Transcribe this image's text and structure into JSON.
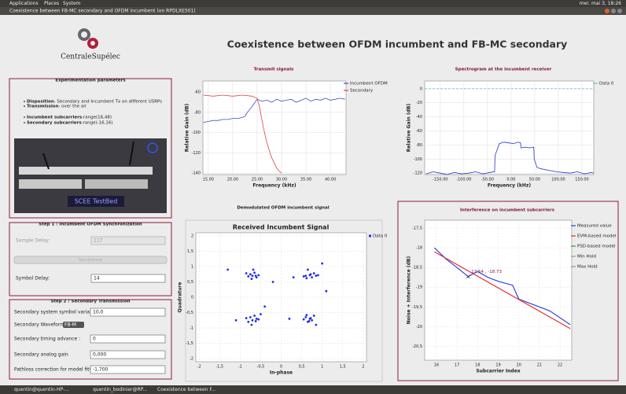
{
  "top_bar": {
    "menus": [
      "Applications",
      "Places",
      "System"
    ],
    "clock": "mer. mai 3, 18:26"
  },
  "window": {
    "title": "Coexistence between FB-MC secondary and OFDM incumbent (on RPDLXE501)"
  },
  "header": {
    "logo_text": "CentraleSupélec",
    "title": "Coexistence between OFDM incumbent and FB-MC secondary"
  },
  "params_panel": {
    "title": "Experimentation parameters",
    "items": [
      {
        "label": "Disposition",
        "text": " : Secondary and Incumbent Tx on different USRPs"
      },
      {
        "label": "Transmission",
        "text": " : over the air"
      },
      {
        "label": "Incumbent subcarriers",
        "text": " :range(16,48)"
      },
      {
        "label": "Secondary subcarriers",
        "text": " :range(-16,16)"
      }
    ],
    "photo_text": "SCEE TestBed"
  },
  "step1": {
    "title": "Step 1 : Incumbent OFDM Synchronization",
    "sample_delay_label": "Sample Delay:",
    "sample_delay": "117",
    "button": "Synchronize",
    "symbol_delay_label": "Symbol Delay:",
    "symbol_delay": "14"
  },
  "step2": {
    "title": "Step 2 : Secondary Transmission",
    "rows": [
      {
        "label": "Secondary system symbol variance (dB)",
        "value": "10,0"
      },
      {
        "label": "Secondary Waveform:",
        "value": "FB-M"
      },
      {
        "label": "Secondary timing advance :",
        "value": "0"
      },
      {
        "label": "Secondary analog gain",
        "value": "0,000"
      },
      {
        "label": "Pathloss correction for model fit(dB)",
        "value": "-1,700"
      }
    ]
  },
  "sections": {
    "demodulated": "Demodulated OFDM incumbent signal"
  },
  "taskbar": [
    "quentin@quentin-HP-...",
    "quentin_bodinier@RP...",
    "Coexistence between F..."
  ],
  "chart_data": [
    {
      "type": "line",
      "title": "Transmit signals",
      "x_label": "Frequency (kHz)",
      "y_label": "Relative Gain (dB)",
      "xlim": [
        13.9,
        43.2
      ],
      "ylim": [
        -141.5,
        -49
      ],
      "xticks": [
        {
          "value": 15,
          "label": "15.00"
        },
        {
          "value": 20,
          "label": "20.00"
        },
        {
          "value": 25,
          "label": "25.00"
        },
        {
          "value": 30,
          "label": "30.00"
        },
        {
          "value": 35,
          "label": "35.00"
        },
        {
          "value": 40,
          "label": "40.00"
        }
      ],
      "yticks": [
        -60,
        -80,
        -100,
        -120,
        -140
      ],
      "grid": true,
      "series": [
        {
          "name": "Incumbent OFDM",
          "color": "#3b4fc4",
          "x": [
            14,
            15,
            16,
            17,
            18,
            19,
            20,
            21,
            22,
            22.5,
            23,
            24,
            25,
            26,
            27,
            28,
            29,
            30,
            31,
            32,
            33,
            34,
            35,
            36,
            37,
            38,
            39,
            40,
            41,
            42,
            43
          ],
          "values": [
            -90,
            -89,
            -88,
            -88,
            -87,
            -87,
            -86,
            -86,
            -85,
            -84,
            -80,
            -74,
            -67,
            -69,
            -68,
            -70,
            -67,
            -69,
            -68,
            -67,
            -70,
            -68,
            -66,
            -69,
            -67,
            -68,
            -66,
            -68,
            -67,
            -66,
            -67
          ]
        },
        {
          "name": "Secondary",
          "color": "#e0404a",
          "x": [
            14,
            16,
            18,
            20,
            22,
            24,
            25,
            25.5,
            26,
            26.5,
            27,
            27.5,
            28,
            28.5,
            29,
            29.5,
            30
          ],
          "values": [
            -63,
            -64,
            -63,
            -64,
            -63,
            -64,
            -66,
            -75,
            -88,
            -100,
            -110,
            -118,
            -125,
            -130,
            -135,
            -138,
            -140
          ]
        }
      ]
    },
    {
      "type": "line",
      "title": "Spectrogram at the incumbent receiver",
      "x_label": "Frequency (kHz)",
      "y_label": "Relative Gain (dB)",
      "xlim": [
        -183,
        175
      ],
      "ylim": [
        -122,
        11
      ],
      "xticks": [
        {
          "value": -150,
          "label": "-150.00"
        },
        {
          "value": -100,
          "label": "-100.00"
        },
        {
          "value": -50,
          "label": "-50.00"
        },
        {
          "value": 0,
          "label": "0.00"
        },
        {
          "value": 50,
          "label": "50.00"
        },
        {
          "value": 100,
          "label": "100.00"
        },
        {
          "value": 150,
          "label": "150.00"
        }
      ],
      "yticks": [
        0,
        -20,
        -40,
        -60,
        -80,
        -100,
        -120
      ],
      "grid": true,
      "series": [
        {
          "name": "Data 0",
          "color": "#5fc8d0",
          "x": [
            -183,
            175
          ],
          "values": [
            0,
            0
          ]
        },
        {
          "color": "#2233cc",
          "x": [
            -180,
            -165,
            -150,
            -135,
            -120,
            -105,
            -90,
            -75,
            -60,
            -45,
            -35,
            -34,
            -25,
            -15,
            -5,
            5,
            15,
            20,
            21,
            30,
            40,
            48,
            49,
            55,
            65,
            80,
            95,
            110,
            125,
            140,
            155,
            170,
            175
          ],
          "values": [
            -121,
            -118,
            -120,
            -122,
            -119,
            -121,
            -120,
            -118,
            -121,
            -119,
            -118,
            -95,
            -78,
            -76,
            -77,
            -78,
            -76,
            -77,
            -84,
            -83,
            -84,
            -83,
            -100,
            -112,
            -114,
            -116,
            -118,
            -119,
            -120,
            -118,
            -121,
            -119,
            -120
          ]
        }
      ]
    },
    {
      "type": "scatter",
      "title": "Received Incumbent Signal",
      "x_label": "In-phase",
      "y_label": "Quadrature",
      "xlim": [
        -2.08,
        2.08
      ],
      "ylim": [
        -2.1,
        2.1
      ],
      "xticks": [
        -2,
        {
          "value": -1.5,
          "label": "-1,5"
        },
        -1,
        {
          "value": -0.5,
          "label": "-0,5"
        },
        0,
        {
          "value": 0.5,
          "label": "0,5"
        },
        1,
        {
          "value": 1.5,
          "label": "1,5"
        },
        2
      ],
      "yticks": [
        2,
        {
          "value": 1.5,
          "label": "1,5"
        },
        1,
        {
          "value": 0.5,
          "label": "0,5"
        },
        0,
        {
          "value": -0.5,
          "label": "-0,5"
        },
        -1,
        {
          "value": -1.5,
          "label": "-1,5"
        },
        -2
      ],
      "grid": true,
      "series": [
        {
          "name": "Data 0",
          "color": "#1f2fe0",
          "x": [
            -0.75,
            -0.7,
            -0.6,
            -0.8,
            -0.65,
            -0.55,
            -0.72,
            -0.85,
            -0.62,
            -0.68,
            0.6,
            0.7,
            0.75,
            0.8,
            0.65,
            0.55,
            0.72,
            0.85,
            0.62,
            0.9,
            -0.75,
            -0.7,
            -0.6,
            -0.8,
            -0.65,
            -0.55,
            -0.72,
            -0.85,
            -0.62,
            -0.5,
            0.6,
            0.7,
            0.75,
            0.8,
            0.65,
            0.55,
            0.72,
            0.85,
            0.62,
            0.68,
            -1.3,
            -1.1,
            -0.2,
            0.2,
            1.0,
            1.1,
            -0.4,
            0.3
          ],
          "values": [
            0.75,
            0.7,
            0.65,
            0.68,
            0.8,
            0.72,
            0.6,
            0.78,
            0.7,
            0.9,
            0.7,
            0.72,
            0.65,
            0.78,
            0.9,
            0.68,
            0.75,
            0.7,
            0.62,
            0.72,
            -0.65,
            -0.75,
            -0.7,
            -0.8,
            -0.6,
            -0.72,
            -0.9,
            -0.68,
            -0.78,
            -0.55,
            -0.65,
            -0.7,
            -0.75,
            -0.6,
            -0.8,
            -0.72,
            -0.68,
            -0.9,
            -0.58,
            -0.78,
            0.9,
            -0.75,
            0.5,
            -0.7,
            1.1,
            0.2,
            -0.3,
            0.65
          ]
        }
      ]
    },
    {
      "type": "line",
      "title": "Interference on incumbent subcarriers",
      "x_label": "Subcarrier Index",
      "y_label": "Noise + Interference (dB)",
      "xlim": [
        15.43,
        22.57
      ],
      "ylim": [
        -20.85,
        -17.3
      ],
      "xticks": [
        16,
        17,
        18,
        19,
        20,
        21,
        22
      ],
      "yticks": [
        {
          "value": -17.5,
          "label": "-17,5"
        },
        -18,
        {
          "value": -18.5,
          "label": "-18,5"
        },
        -19,
        {
          "value": -19.5,
          "label": "-19,5"
        },
        -20,
        {
          "value": -20.5,
          "label": "-20,5"
        }
      ],
      "grid": true,
      "series": [
        {
          "name": "Measured value",
          "color": "#3344dd",
          "x": [
            15.9,
            16.5,
            17,
            17.54,
            18,
            18.5,
            19,
            19.7,
            20,
            21,
            21.5,
            22.5
          ],
          "values": [
            -18.0,
            -18.3,
            -18.5,
            -18.73,
            -18.6,
            -18.75,
            -18.85,
            -18.95,
            -19.3,
            -19.5,
            -19.6,
            -19.95
          ]
        },
        {
          "name": "EVM-based model",
          "color": "#e03030",
          "x": [
            15.9,
            22.5
          ],
          "values": [
            -18.1,
            -20.05
          ]
        },
        {
          "name": "PSD-based model",
          "color": "#3a9a3a",
          "x": [],
          "values": []
        },
        {
          "name": "Min Hold",
          "color": "#999999",
          "x": [],
          "values": []
        },
        {
          "name": "Max Hold",
          "color": "#8a9a7a",
          "x": [],
          "values": []
        }
      ],
      "annotation": {
        "text": "17.54 , -18.73",
        "x": 17.54,
        "y": -18.73
      }
    }
  ]
}
